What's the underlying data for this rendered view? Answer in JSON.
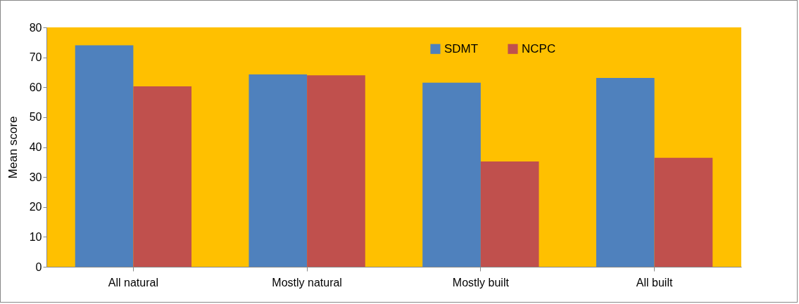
{
  "chart_data": {
    "type": "bar",
    "ylabel": "Mean score",
    "categories": [
      "All natural",
      "Mostly natural",
      "Mostly built",
      "All built"
    ],
    "series": [
      {
        "name": "SDMT",
        "color": "#4f81bd",
        "values": [
          74,
          64.3,
          61.5,
          63.1
        ]
      },
      {
        "name": "NCPC",
        "color": "#c0504d",
        "values": [
          60.3,
          64,
          35.2,
          36.4
        ]
      }
    ],
    "ylim": [
      0,
      80
    ],
    "yticks": [
      0,
      10,
      20,
      30,
      40,
      50,
      60,
      70,
      80
    ],
    "grid": false,
    "legend": "top right"
  }
}
